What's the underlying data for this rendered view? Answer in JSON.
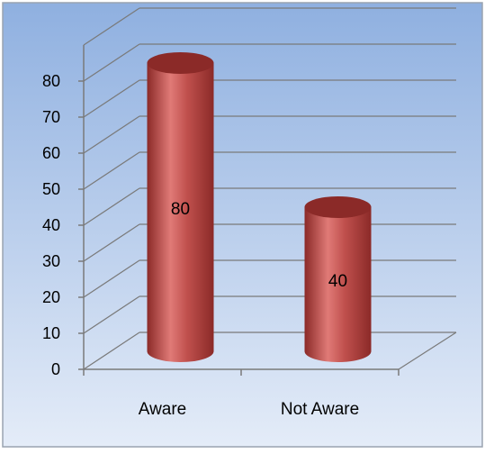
{
  "chart_data": {
    "type": "bar",
    "style": "3d-cylinder",
    "categories": [
      "Aware",
      "Not Aware"
    ],
    "values": [
      80,
      40
    ],
    "data_labels": [
      "80",
      "40"
    ],
    "ylim": [
      0,
      80
    ],
    "yticks": [
      0,
      10,
      20,
      30,
      40,
      50,
      60,
      70,
      80
    ],
    "grid": true,
    "title": "",
    "xlabel": "",
    "ylabel": "",
    "colors": {
      "bar": "#c0504d",
      "bar_dark": "#8b2a28",
      "bar_light": "#e07a77",
      "background_top": "#8fb0e0",
      "background_bottom": "#e4ecf8",
      "gridline": "#7a7a7a",
      "border": "#9aa3b0",
      "text": "#000000"
    }
  }
}
